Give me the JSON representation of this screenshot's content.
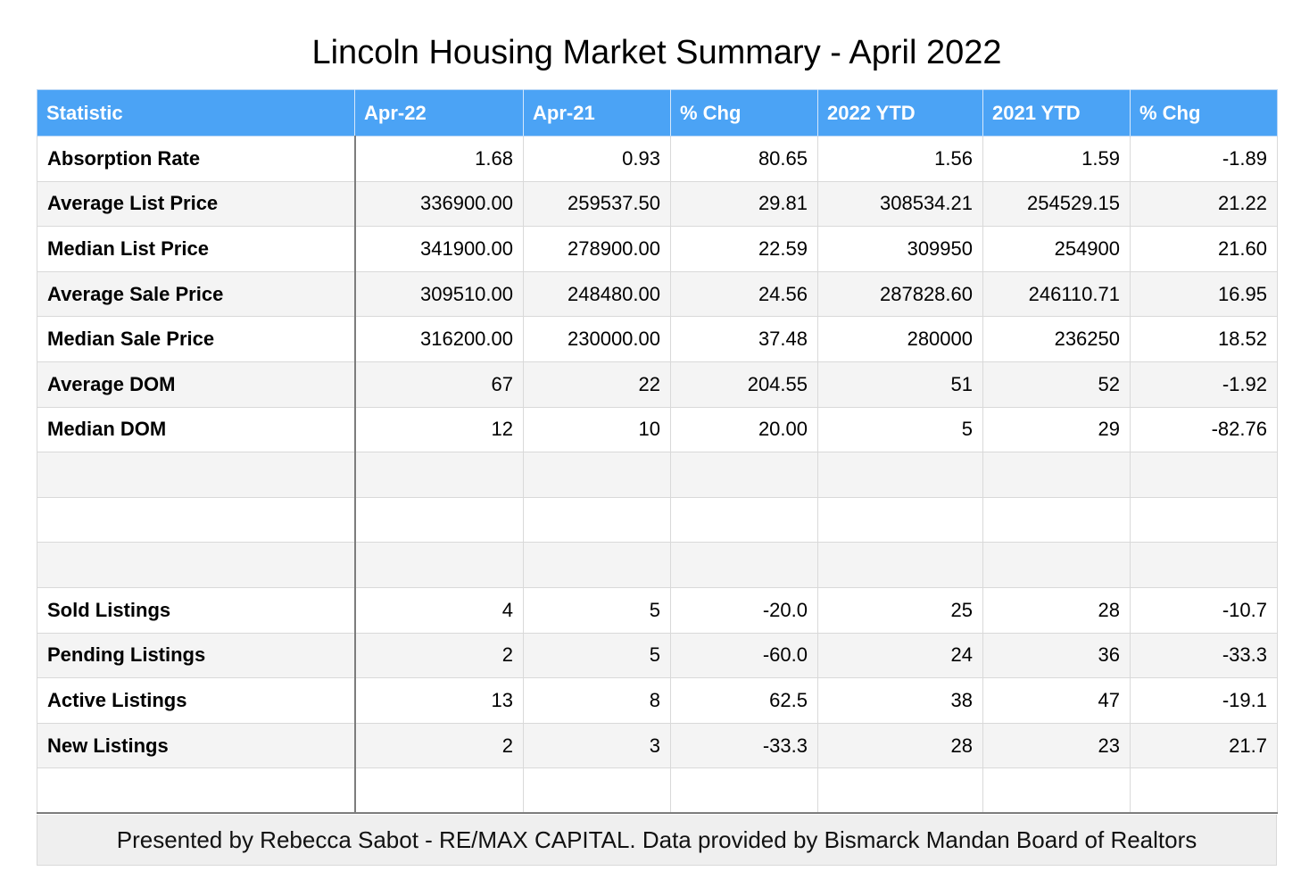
{
  "chart_data": {
    "type": "table",
    "title": "Lincoln Housing Market Summary - April 2022",
    "columns": [
      "Statistic",
      "Apr-22",
      "Apr-21",
      "% Chg",
      "2022 YTD",
      "2021 YTD",
      "% Chg"
    ],
    "rows": [
      [
        "Absorption Rate",
        "1.68",
        "0.93",
        "80.65",
        "1.56",
        "1.59",
        "-1.89"
      ],
      [
        "Average List Price",
        "336900.00",
        "259537.50",
        "29.81",
        "308534.21",
        "254529.15",
        "21.22"
      ],
      [
        "Median List Price",
        "341900.00",
        "278900.00",
        "22.59",
        "309950",
        "254900",
        "21.60"
      ],
      [
        "Average Sale Price",
        "309510.00",
        "248480.00",
        "24.56",
        "287828.60",
        "246110.71",
        "16.95"
      ],
      [
        "Median Sale Price",
        "316200.00",
        "230000.00",
        "37.48",
        "280000",
        "236250",
        "18.52"
      ],
      [
        "Average DOM",
        "67",
        "22",
        "204.55",
        "51",
        "52",
        "-1.92"
      ],
      [
        "Median DOM",
        "12",
        "10",
        "20.00",
        "5",
        "29",
        "-82.76"
      ],
      [
        "",
        "",
        "",
        "",
        "",
        "",
        ""
      ],
      [
        "",
        "",
        "",
        "",
        "",
        "",
        ""
      ],
      [
        "",
        "",
        "",
        "",
        "",
        "",
        ""
      ],
      [
        "Sold Listings",
        "4",
        "5",
        "-20.0",
        "25",
        "28",
        "-10.7"
      ],
      [
        "Pending Listings",
        "2",
        "5",
        "-60.0",
        "24",
        "36",
        "-33.3"
      ],
      [
        "Active Listings",
        "13",
        "8",
        "62.5",
        "38",
        "47",
        "-19.1"
      ],
      [
        "New Listings",
        "2",
        "3",
        "-33.3",
        "28",
        "23",
        "21.7"
      ],
      [
        "",
        "",
        "",
        "",
        "",
        "",
        ""
      ]
    ],
    "footer": "Presented by Rebecca Sabot - RE/MAX CAPITAL. Data provided by Bismarck Mandan Board of Realtors",
    "colors": {
      "header_background": "#4ba3f5",
      "header_text": "#ffffff",
      "stripe": "#f4f4f4",
      "footer_background": "#efefef"
    }
  }
}
